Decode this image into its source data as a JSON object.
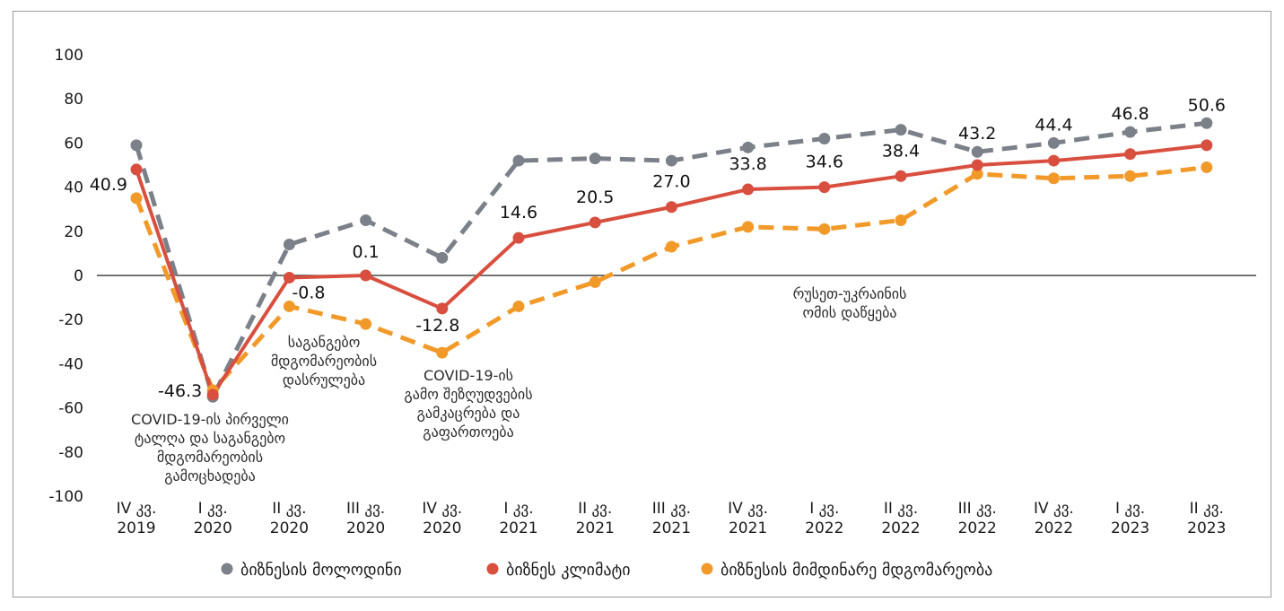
{
  "chart_data": {
    "type": "line",
    "categories": [
      [
        "IV კვ.",
        "2019"
      ],
      [
        "I კვ.",
        "2020"
      ],
      [
        "II კვ.",
        "2020"
      ],
      [
        "III კვ.",
        "2020"
      ],
      [
        "IV კვ.",
        "2020"
      ],
      [
        "I კვ.",
        "2021"
      ],
      [
        "II კვ.",
        "2021"
      ],
      [
        "III კვ.",
        "2021"
      ],
      [
        "IV კვ.",
        "2021"
      ],
      [
        "I კვ.",
        "2022"
      ],
      [
        "II კვ.",
        "2022"
      ],
      [
        "III კვ.",
        "2022"
      ],
      [
        "IV კვ.",
        "2022"
      ],
      [
        "I კვ.",
        "2023"
      ],
      [
        "II კვ.",
        "2023"
      ]
    ],
    "ylim": [
      -100,
      100
    ],
    "yticks": [
      "100",
      "80",
      "60",
      "40",
      "20",
      "0",
      "-20",
      "-40",
      "-60",
      "-80",
      "-100"
    ],
    "grid": false,
    "legend_position": "bottom",
    "series": [
      {
        "name": "ბიზნესის მოლოდინი",
        "color": "#7b8089",
        "dash": true,
        "values": [
          59,
          -55,
          14,
          25,
          8,
          52,
          53,
          52,
          58,
          62,
          66,
          56,
          60,
          65,
          69
        ]
      },
      {
        "name": "ბიზნეს კლიმატი",
        "color": "#d94f3f",
        "dash": false,
        "values": [
          48,
          -54,
          -1,
          0,
          -15,
          17,
          24,
          31,
          39,
          40,
          45,
          50,
          52,
          55,
          59
        ]
      },
      {
        "name": "ბიზნესის მიმდინარე მდგომარეობა",
        "color": "#f19a2a",
        "dash": true,
        "values": [
          35,
          -52,
          -14,
          -22,
          -35,
          -14,
          -3,
          13,
          22,
          21,
          25,
          46,
          44,
          45,
          49
        ]
      }
    ],
    "data_labels": [
      "40.9",
      "-46.3",
      "-0.8",
      "0.1",
      "-12.8",
      "14.6",
      "20.5",
      "27.0",
      "33.8",
      "34.6",
      "38.4",
      "43.2",
      "44.4",
      "46.8",
      "50.6"
    ],
    "annotations": [
      [
        "COVID-19-ის პირველი",
        "ტალღა და საგანგებო",
        "მდგომარეობის",
        "გამოცხადება"
      ],
      [
        "საგანგებო",
        "მდგომარეობის",
        "დასრულება"
      ],
      [
        "COVID-19-ის",
        "გამო შეზღუდვების",
        "გამკაცრება და",
        "გაფართოება"
      ],
      [
        "რუსეთ-უკრაინის",
        "ომის დაწყება"
      ]
    ]
  }
}
